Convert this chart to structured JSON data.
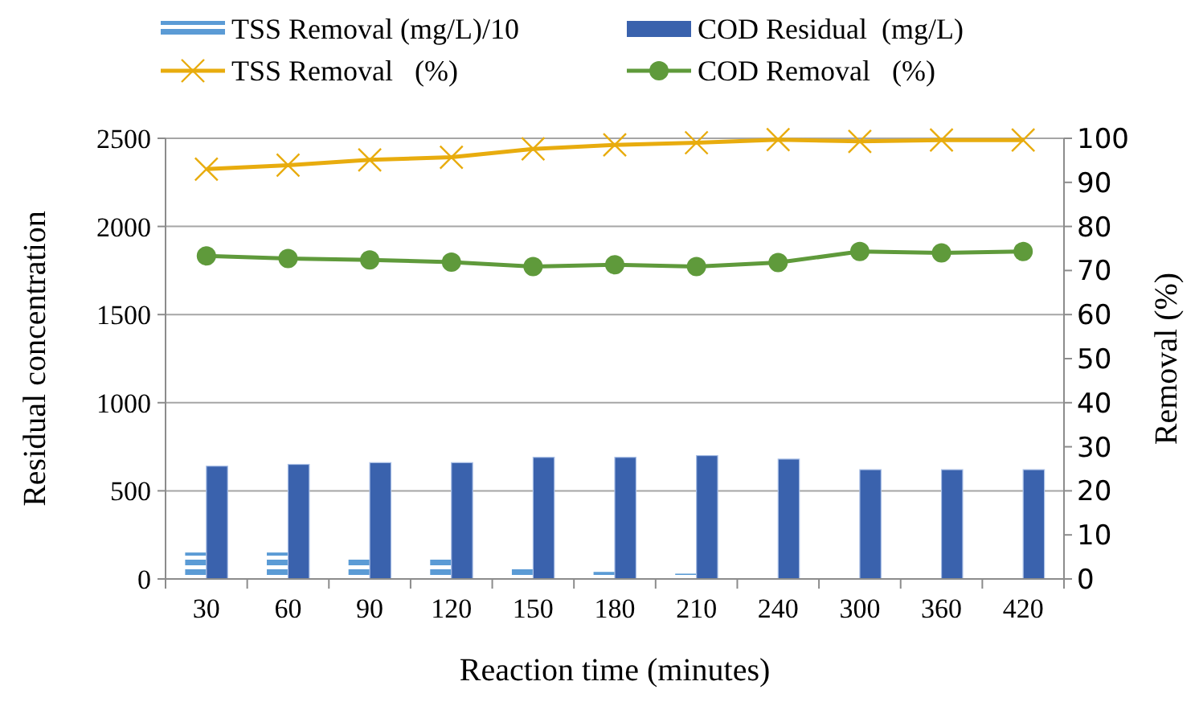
{
  "chart_data": {
    "type": "bar",
    "xlabel": "Reaction time (minutes)",
    "ylabel": "Residual concentration",
    "y2label": "Removal (%)",
    "categories": [
      "30",
      "60",
      "90",
      "120",
      "150",
      "180",
      "210",
      "240",
      "300",
      "360",
      "420"
    ],
    "series": [
      {
        "name": "TSS Removal (mg/L)/10",
        "color": "#5b9bd5",
        "values": [
          150,
          150,
          110,
          110,
          60,
          40,
          30,
          0,
          0,
          0,
          0
        ]
      },
      {
        "name": "COD Residual  (mg/L)",
        "color": "#3a62ad",
        "values": [
          640,
          650,
          660,
          660,
          690,
          690,
          700,
          680,
          620,
          620,
          620
        ]
      },
      {
        "name": "TSS Removal   (%)",
        "type": "line",
        "axis": "y2",
        "marker": "cross",
        "color": "#e8ac0e",
        "values": [
          93,
          93.9,
          95.1,
          95.7,
          97.6,
          98.5,
          99,
          99.7,
          99.3,
          99.6,
          99.6
        ]
      },
      {
        "name": "COD Removal   (%)",
        "type": "line",
        "axis": "y2",
        "marker": "circle",
        "color": "#5f9a3b",
        "values": [
          73.3,
          72.7,
          72.4,
          71.9,
          70.9,
          71.3,
          70.9,
          71.8,
          74.3,
          74,
          74.3
        ]
      }
    ],
    "ylim": [
      0,
      2500
    ],
    "yticks": [
      0,
      500,
      1000,
      1500,
      2000,
      2500
    ],
    "y2lim": [
      0,
      100
    ],
    "y2ticks": [
      0,
      10,
      20,
      30,
      40,
      50,
      60,
      70,
      80,
      90,
      100
    ],
    "grid": "y",
    "legend": "top"
  }
}
